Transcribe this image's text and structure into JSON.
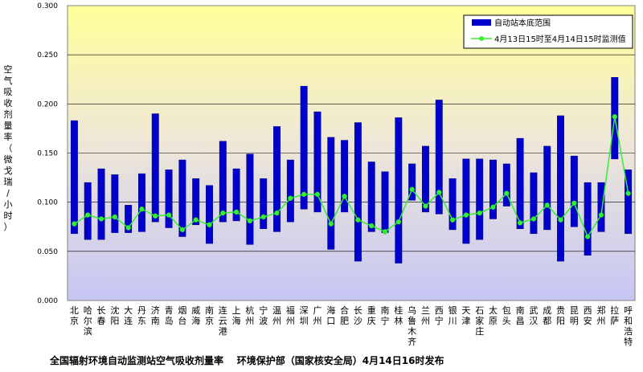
{
  "footer": "全国辐射环境自动监测站空气吸收剂量率    环境保护部（国家核安全局）4月14日16时发布",
  "chart_data": {
    "type": "bar",
    "ylabel": "空气吸收剂量率（微戈瑞/小时）",
    "ylim": [
      0,
      0.3
    ],
    "yticks": [
      "0.000",
      "0.050",
      "0.100",
      "0.150",
      "0.200",
      "0.250",
      "0.300"
    ],
    "legend": {
      "position": "top-right",
      "range_label": "自动站本底范围",
      "value_label": "4月13日15时至4月14日15时监测值"
    },
    "colors": {
      "range": "#0000cc",
      "value": "#33ee33"
    },
    "categories": [
      "北京",
      "哈尔滨",
      "长春",
      "沈阳",
      "大连",
      "丹东",
      "济南",
      "青岛",
      "烟台",
      "威海",
      "南京",
      "连云港",
      "上海",
      "杭州",
      "宁波",
      "温州",
      "福州",
      "深圳",
      "广州",
      "海口",
      "合肥",
      "长沙",
      "重庆",
      "南宁",
      "桂林",
      "乌鲁木齐",
      "兰州",
      "西宁",
      "银川",
      "天津",
      "石家庄",
      "太原",
      "包头",
      "南昌",
      "武汉",
      "成都",
      "贵阳",
      "昆明",
      "西安",
      "郑州",
      "拉萨",
      "呼和浩特"
    ],
    "series": [
      {
        "name": "自动站本底范围",
        "low": [
          0.068,
          0.062,
          0.062,
          0.069,
          0.069,
          0.07,
          0.08,
          0.074,
          0.065,
          0.077,
          0.058,
          0.08,
          0.081,
          0.057,
          0.073,
          0.07,
          0.08,
          0.093,
          0.09,
          0.052,
          0.09,
          0.04,
          0.07,
          0.069,
          0.038,
          0.102,
          0.09,
          0.088,
          0.072,
          0.058,
          0.062,
          0.083,
          0.096,
          0.073,
          0.068,
          0.072,
          0.04,
          0.075,
          0.046,
          0.07,
          0.144,
          0.068
        ],
        "high": [
          0.183,
          0.12,
          0.134,
          0.128,
          0.097,
          0.129,
          0.19,
          0.133,
          0.143,
          0.124,
          0.117,
          0.162,
          0.134,
          0.149,
          0.124,
          0.177,
          0.143,
          0.218,
          0.192,
          0.166,
          0.163,
          0.181,
          0.141,
          0.131,
          0.186,
          0.139,
          0.157,
          0.204,
          0.124,
          0.144,
          0.144,
          0.143,
          0.139,
          0.165,
          0.13,
          0.157,
          0.188,
          0.147,
          0.12,
          0.12,
          0.227,
          0.133
        ]
      },
      {
        "name": "4月13日15时至4月14日15时监测值",
        "values": [
          0.078,
          0.087,
          0.083,
          0.085,
          0.074,
          0.093,
          0.086,
          0.087,
          0.072,
          0.082,
          0.077,
          0.089,
          0.09,
          0.081,
          0.085,
          0.089,
          0.104,
          0.108,
          0.108,
          0.078,
          0.106,
          0.082,
          0.076,
          0.07,
          0.08,
          0.113,
          0.096,
          0.11,
          0.082,
          0.087,
          0.089,
          0.095,
          0.109,
          0.079,
          0.083,
          0.097,
          0.082,
          0.099,
          0.065,
          0.087,
          0.187,
          0.109
        ]
      }
    ]
  }
}
